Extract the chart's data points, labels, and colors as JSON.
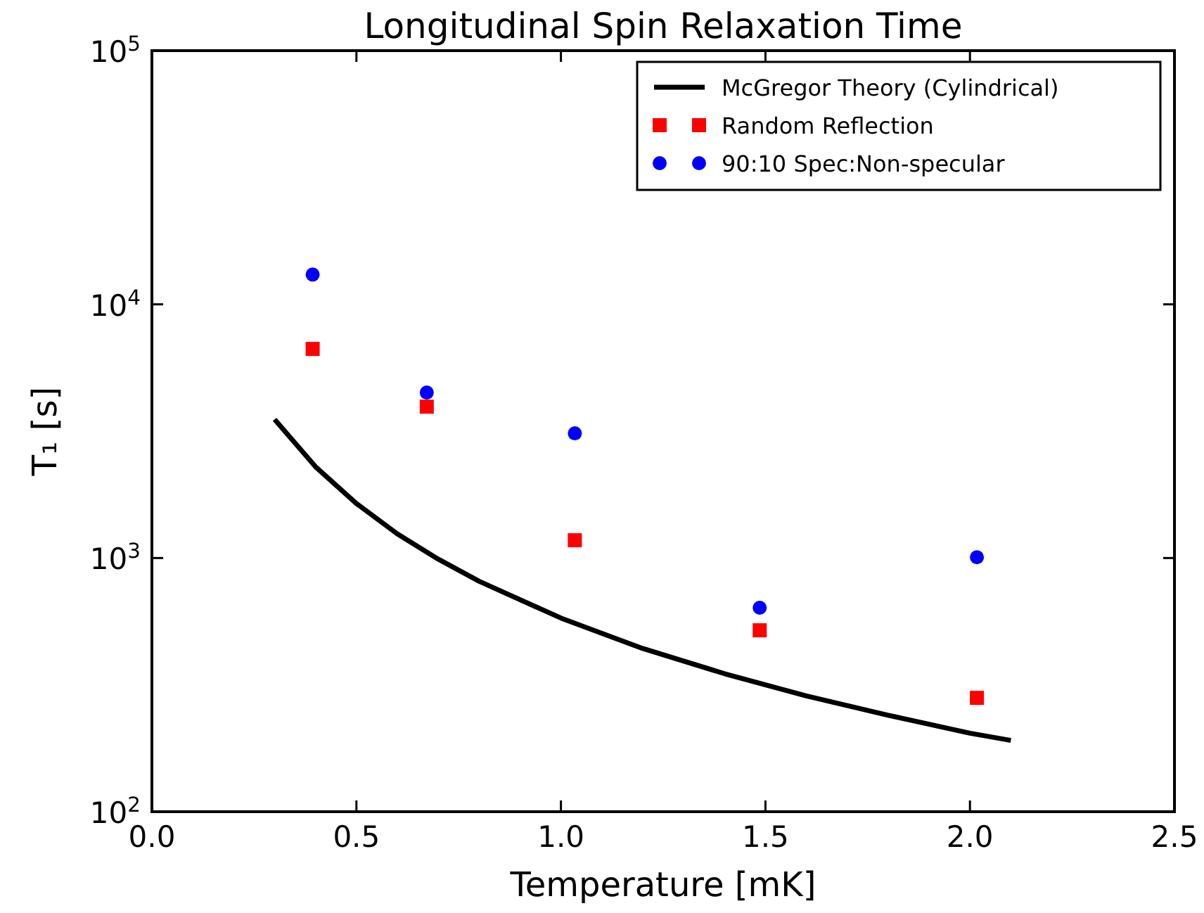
{
  "chart_data": {
    "type": "scatter",
    "title": "Longitudinal Spin Relaxation Time",
    "xlabel": "Temperature [mK]",
    "ylabel": "T₁ [s]",
    "log": "y",
    "xlim": [
      0,
      2.5
    ],
    "xticks": [
      {
        "value": 0,
        "label": "0.0"
      },
      0.5,
      {
        "value": 1,
        "label": "1.0"
      },
      1.5,
      {
        "value": 2,
        "label": "2.0"
      },
      2.5
    ],
    "ylim": [
      100,
      100000
    ],
    "yticks": [
      {
        "value": 100,
        "label": "10$^{2}$"
      },
      {
        "value": 1000,
        "label": "10$^{3}$"
      },
      {
        "value": 10000,
        "label": "10$^{4}$"
      },
      {
        "value": 100000,
        "label": "10$^{5}$"
      }
    ],
    "grid": false,
    "legend": "top right",
    "series": [
      {
        "name": "McGregor Theory (Cylindrical)",
        "type": "line",
        "color": "#000000",
        "marker": "none",
        "line_style": "solid",
        "x": [
          0.3,
          0.4,
          0.5,
          0.6,
          0.7,
          0.8,
          1.0,
          1.2,
          1.4,
          1.6,
          1.8,
          2.0,
          2.1
        ],
        "values": [
          3520,
          2290,
          1640,
          1245,
          990,
          810,
          580,
          440,
          350,
          286,
          240,
          204,
          191
        ]
      },
      {
        "name": "Random Reflection",
        "type": "scatter",
        "color": "#ff0000",
        "marker": "square",
        "x": [
          0.393,
          0.672,
          1.034,
          1.486,
          2.017
        ],
        "values": [
          6670,
          3950,
          1175,
          519,
          281
        ]
      },
      {
        "name": "90:10 Spec:Non-specular",
        "type": "scatter",
        "color": "#0000ff",
        "marker": "circle",
        "x": [
          0.393,
          0.672,
          1.034,
          1.486,
          2.017
        ],
        "values": [
          13100,
          4490,
          3100,
          637,
          1007
        ]
      }
    ]
  }
}
